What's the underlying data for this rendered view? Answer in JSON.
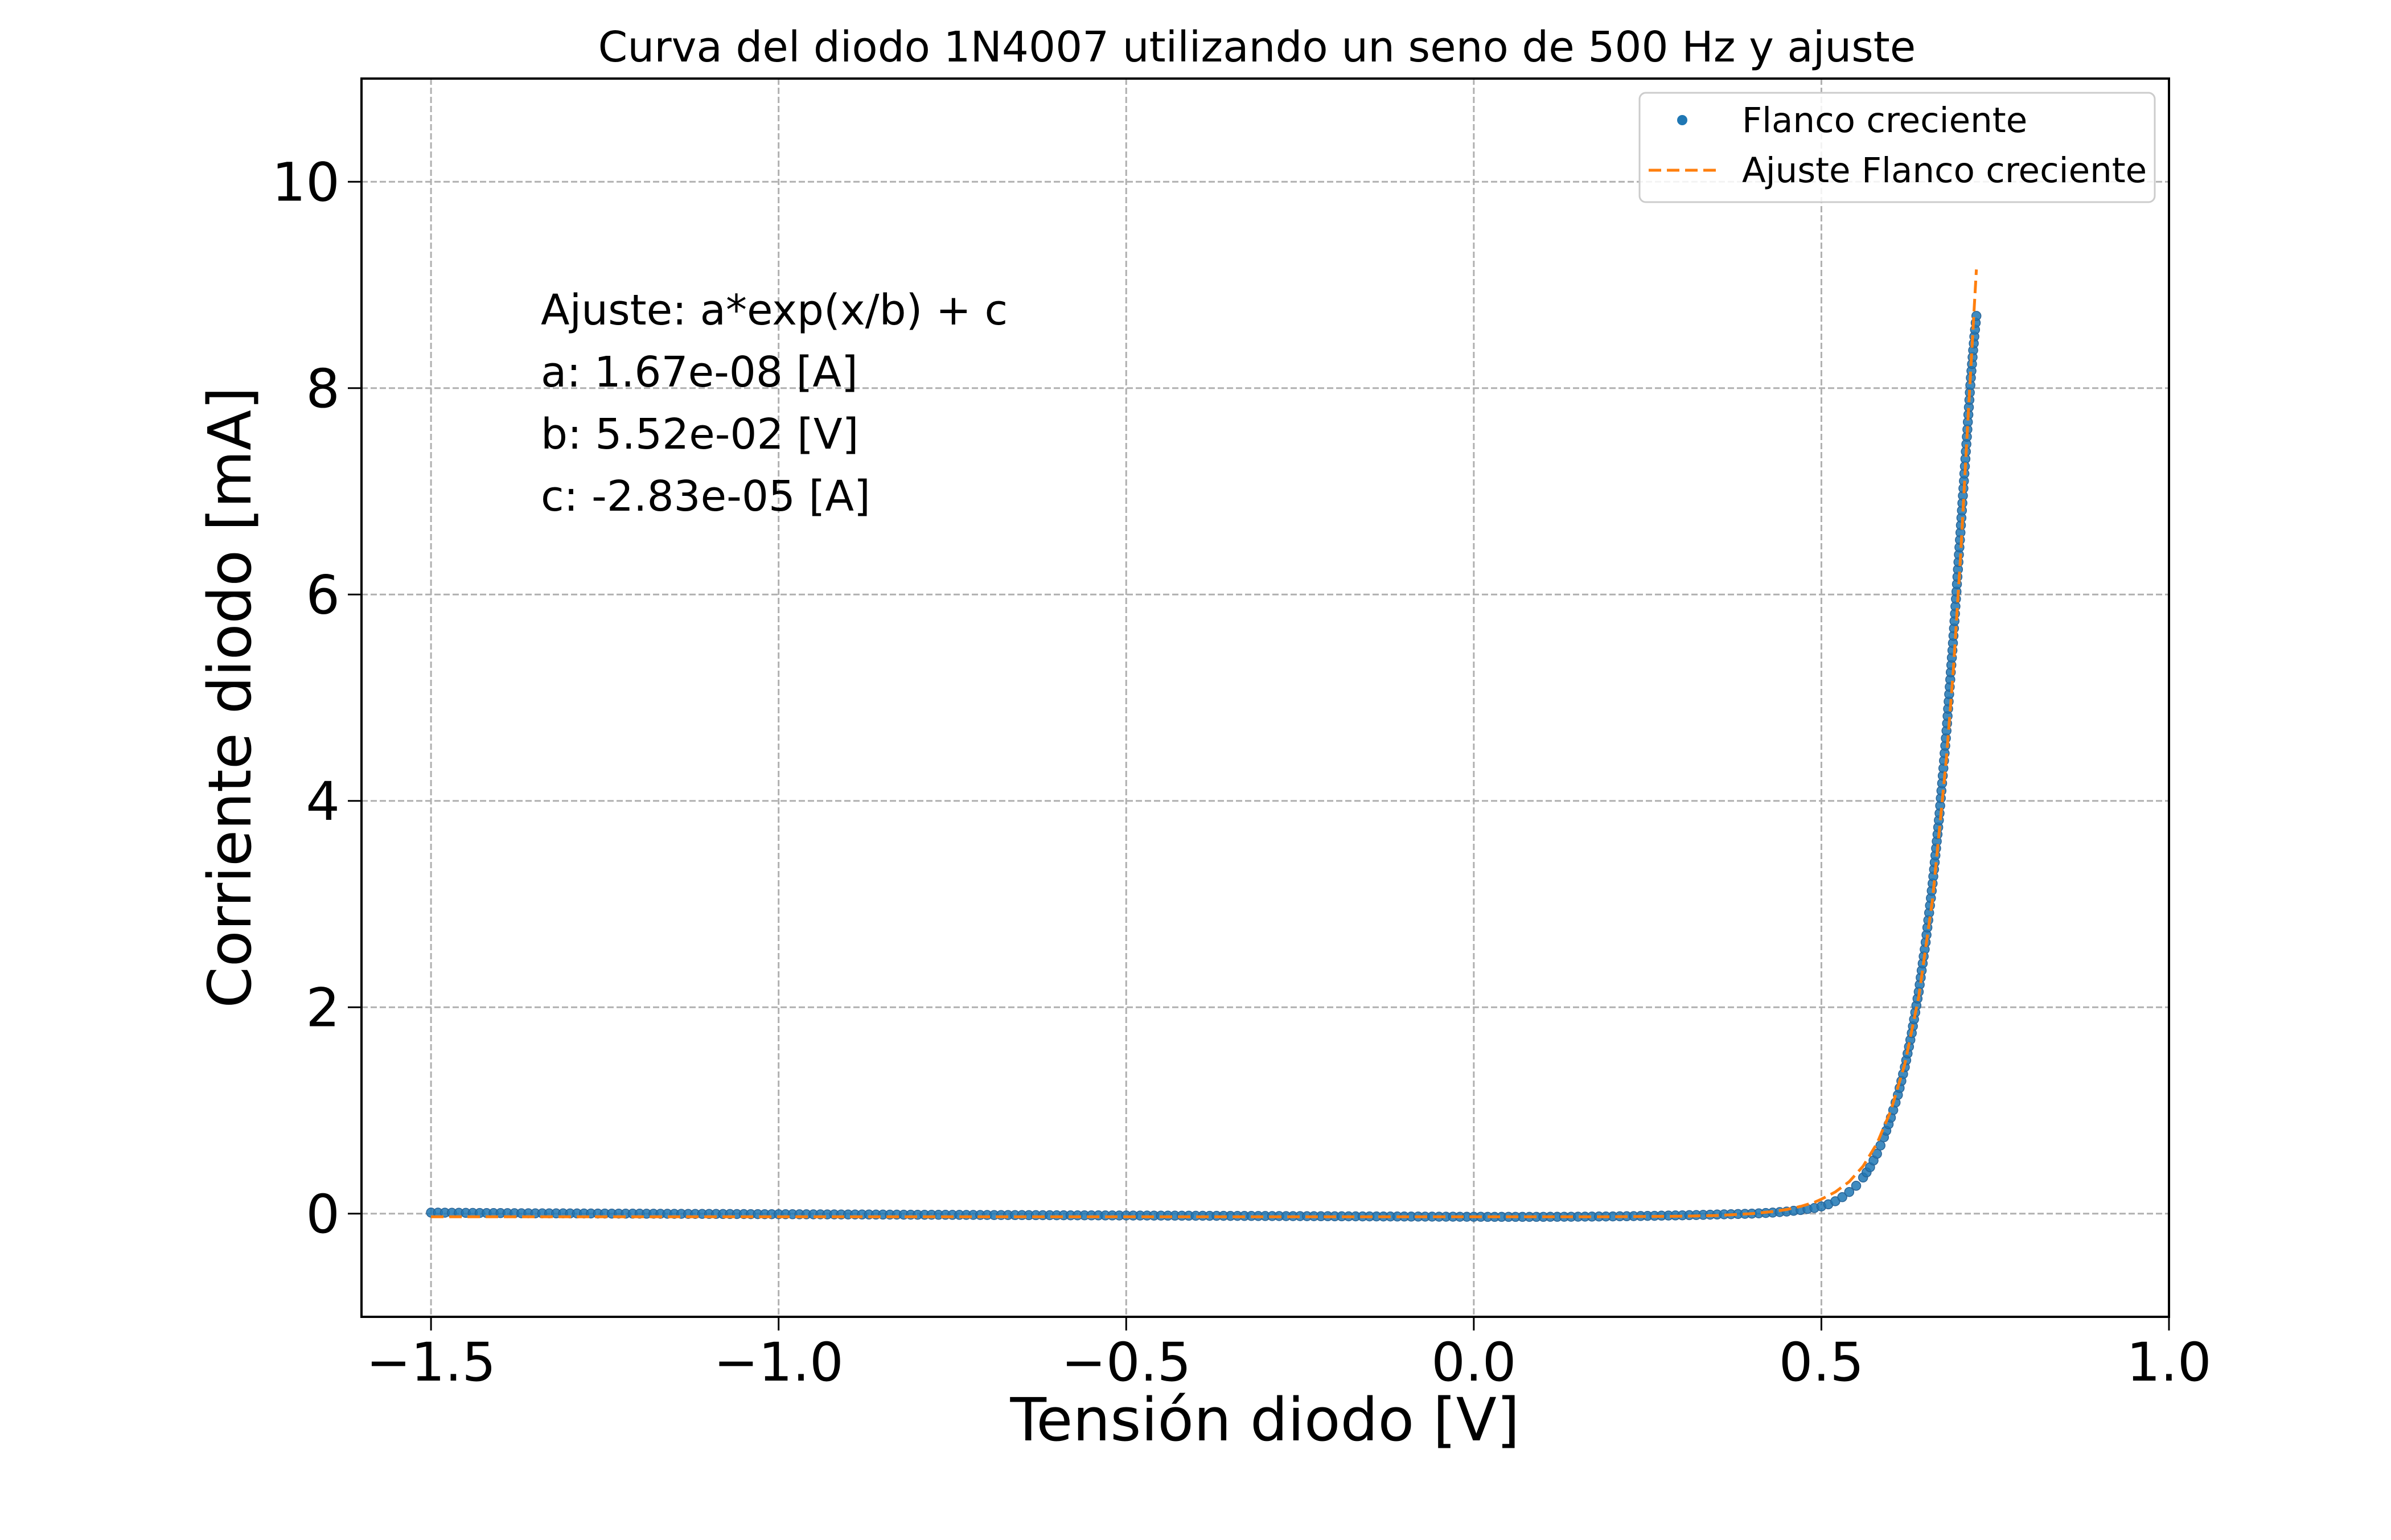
{
  "chart_data": {
    "type": "scatter",
    "title": "Curva del diodo 1N4007 utilizando un seno de 500 Hz y ajuste",
    "xlabel": "Tensión diodo [V]",
    "ylabel": "Corriente diodo [mA]",
    "xlim": [
      -1.6,
      1.0
    ],
    "ylim": [
      -1.0,
      11.0
    ],
    "x_ticks": [
      -1.5,
      -1.0,
      -0.5,
      0.0,
      0.5,
      1.0
    ],
    "x_tick_labels": [
      "−1.5",
      "−1.0",
      "−0.5",
      "0.0",
      "0.5",
      "1.0"
    ],
    "y_ticks": [
      0,
      2,
      4,
      6,
      8,
      10
    ],
    "y_tick_labels": [
      "0",
      "2",
      "4",
      "6",
      "8",
      "10"
    ],
    "grid": true,
    "legend_position": "top-right",
    "annotations": [
      "Ajuste: a*exp(x/b) + c",
      "a: 1.67e-08 [A]",
      "b: 5.52e-02 [V]",
      "c: -2.83e-05 [A]"
    ],
    "series": [
      {
        "name": "Flanco creciente",
        "kind": "scatter",
        "color": "#1f77b4",
        "points": [
          [
            -1.5,
            0.01
          ],
          [
            -1.46,
            0.008
          ],
          [
            -1.42,
            0.006
          ],
          [
            -1.38,
            0.004
          ],
          [
            -1.34,
            0.003
          ],
          [
            -1.3,
            0.002
          ],
          [
            -1.26,
            0.001
          ],
          [
            -1.22,
            0.0
          ],
          [
            -1.18,
            -0.001
          ],
          [
            -1.14,
            -0.002
          ],
          [
            -1.1,
            -0.003
          ],
          [
            -1.06,
            -0.004
          ],
          [
            -1.02,
            -0.005
          ],
          [
            -0.98,
            -0.006
          ],
          [
            -0.94,
            -0.007
          ],
          [
            -0.9,
            -0.008
          ],
          [
            -0.86,
            -0.009
          ],
          [
            -0.82,
            -0.01
          ],
          [
            -0.78,
            -0.011
          ],
          [
            -0.74,
            -0.012
          ],
          [
            -0.7,
            -0.013
          ],
          [
            -0.66,
            -0.014
          ],
          [
            -0.62,
            -0.015
          ],
          [
            -0.58,
            -0.016
          ],
          [
            -0.54,
            -0.017
          ],
          [
            -0.5,
            -0.018
          ],
          [
            -0.46,
            -0.019
          ],
          [
            -0.42,
            -0.02
          ],
          [
            -0.38,
            -0.021
          ],
          [
            -0.34,
            -0.022
          ],
          [
            -0.3,
            -0.023
          ],
          [
            -0.26,
            -0.024
          ],
          [
            -0.22,
            -0.025
          ],
          [
            -0.18,
            -0.026
          ],
          [
            -0.14,
            -0.027
          ],
          [
            -0.1,
            -0.028
          ],
          [
            -0.06,
            -0.029
          ],
          [
            -0.02,
            -0.03
          ],
          [
            0.02,
            -0.031
          ],
          [
            0.06,
            -0.031
          ],
          [
            0.1,
            -0.031
          ],
          [
            0.14,
            -0.03
          ],
          [
            0.18,
            -0.028
          ],
          [
            0.22,
            -0.025
          ],
          [
            0.26,
            -0.021
          ],
          [
            0.3,
            -0.016
          ],
          [
            0.33,
            -0.012
          ],
          [
            0.36,
            -0.007
          ],
          [
            0.39,
            -0.002
          ],
          [
            0.41,
            0.003
          ],
          [
            0.43,
            0.01
          ],
          [
            0.45,
            0.02
          ],
          [
            0.47,
            0.035
          ],
          [
            0.49,
            0.055
          ],
          [
            0.5,
            0.07
          ],
          [
            0.51,
            0.09
          ],
          [
            0.52,
            0.12
          ],
          [
            0.53,
            0.16
          ],
          [
            0.54,
            0.21
          ],
          [
            0.55,
            0.27
          ],
          [
            0.56,
            0.35
          ],
          [
            0.57,
            0.45
          ],
          [
            0.58,
            0.58
          ],
          [
            0.59,
            0.74
          ],
          [
            0.6,
            0.93
          ],
          [
            0.61,
            1.15
          ],
          [
            0.62,
            1.42
          ],
          [
            0.63,
            1.75
          ],
          [
            0.64,
            2.15
          ],
          [
            0.65,
            2.63
          ],
          [
            0.66,
            3.2
          ],
          [
            0.67,
            3.88
          ],
          [
            0.68,
            4.68
          ],
          [
            0.69,
            5.6
          ],
          [
            0.7,
            6.6
          ],
          [
            0.71,
            7.6
          ],
          [
            0.715,
            8.1
          ],
          [
            0.72,
            8.5
          ],
          [
            0.723,
            8.7
          ]
        ]
      },
      {
        "name": "Ajuste Flanco creciente",
        "kind": "line",
        "style": "dashed",
        "color": "#ff7f0e",
        "points": [
          [
            -1.5,
            -0.03
          ],
          [
            -1.0,
            -0.03
          ],
          [
            -0.5,
            -0.03
          ],
          [
            0.0,
            -0.03
          ],
          [
            0.2,
            -0.03
          ],
          [
            0.3,
            -0.025
          ],
          [
            0.35,
            -0.018
          ],
          [
            0.4,
            0.0
          ],
          [
            0.43,
            0.02
          ],
          [
            0.45,
            0.04
          ],
          [
            0.47,
            0.07
          ],
          [
            0.49,
            0.11
          ],
          [
            0.5,
            0.14
          ],
          [
            0.52,
            0.21
          ],
          [
            0.54,
            0.31
          ],
          [
            0.56,
            0.46
          ],
          [
            0.58,
            0.68
          ],
          [
            0.6,
            1.0
          ],
          [
            0.62,
            1.45
          ],
          [
            0.64,
            2.1
          ],
          [
            0.66,
            3.05
          ],
          [
            0.68,
            4.42
          ],
          [
            0.69,
            5.28
          ],
          [
            0.7,
            6.35
          ],
          [
            0.71,
            7.6
          ],
          [
            0.72,
            8.8
          ],
          [
            0.723,
            9.15
          ]
        ]
      }
    ]
  }
}
